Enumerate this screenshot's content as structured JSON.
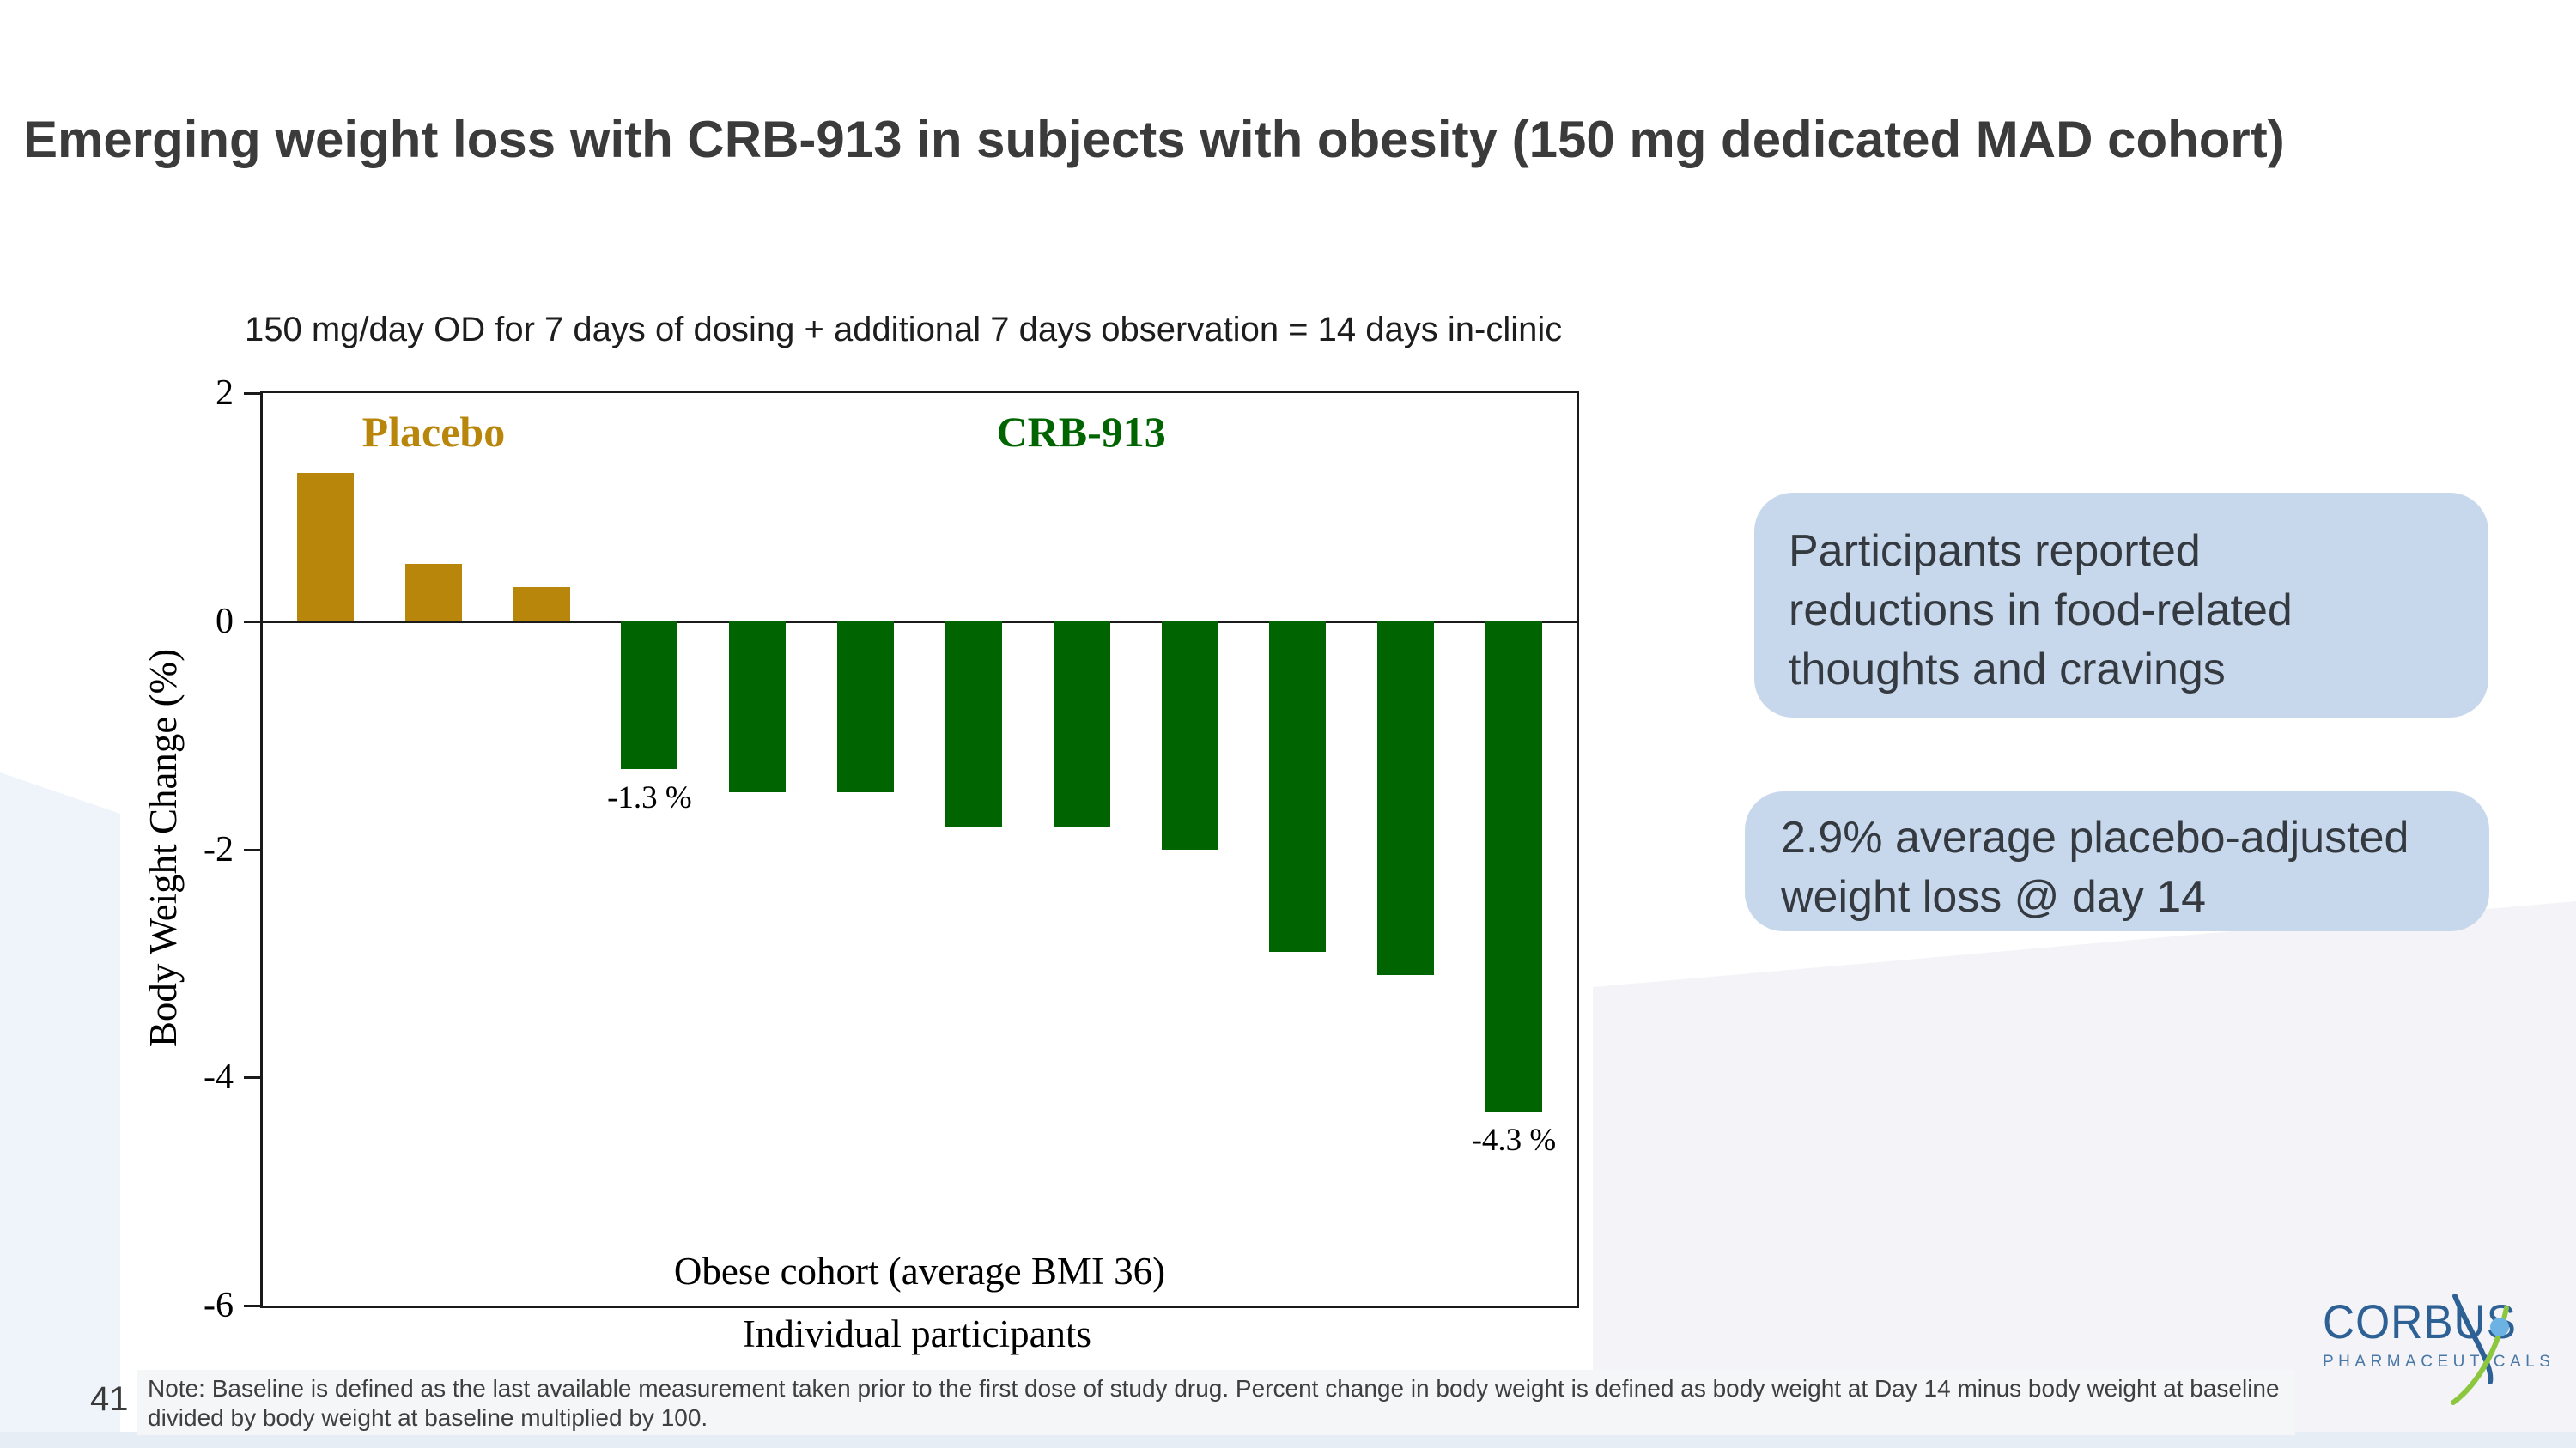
{
  "slide": {
    "title": "Emerging weight loss with CRB-913 in subjects with obesity (150 mg dedicated MAD cohort)",
    "page_number": "41",
    "note": "Note: Baseline is defined as the last available measurement taken prior to the first dose of study drug. Percent change in body weight is defined as body weight at Day 14 minus body weight at baseline\ndivided by body weight at baseline multiplied by 100."
  },
  "chart_data": {
    "type": "bar",
    "title": "150 mg/day OD for 7 days of dosing + additional 7 days observation = 14 days in-clinic",
    "ylabel": "Body Weight Change (%)",
    "xlabel_inner": "Obese cohort (average BMI 36)",
    "xlabel_outer": "Individual participants",
    "ylim": [
      -6,
      2
    ],
    "yticks": [
      2,
      0,
      -2,
      -4,
      -6
    ],
    "grid": false,
    "groups": [
      {
        "name": "Placebo",
        "color": "#b8860b",
        "label_left": "13%",
        "values": [
          1.3,
          0.5,
          0.3
        ]
      },
      {
        "name": "CRB-913",
        "color": "#006400",
        "label_left": "62.3%",
        "values": [
          -1.3,
          -1.5,
          -1.5,
          -1.8,
          -1.8,
          -2.0,
          -2.9,
          -3.1,
          -4.3
        ]
      }
    ],
    "bar_labels": [
      {
        "index": 3,
        "text": "-1.3 %"
      },
      {
        "index": 11,
        "text": "-4.3 %"
      }
    ]
  },
  "callouts": {
    "box1": "Participants reported\nreductions in food-related\nthoughts and cravings",
    "box2": "2.9% average placebo-adjusted\nweight loss @ day 14"
  },
  "logo": {
    "wordmark": "CORBUS",
    "subtext": "PHARMACEUTICALS",
    "blue": "#2d6094",
    "light_blue": "#6cb2e2",
    "green": "#8dc63f"
  },
  "colors": {
    "placebo_bar": "#b8860b",
    "crb913_bar": "#006400",
    "callout_bg": "#c8d8ec",
    "title_text": "#3b3b3b"
  }
}
